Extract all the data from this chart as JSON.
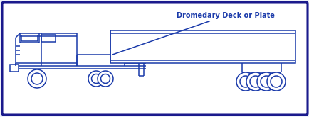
{
  "bg_color": "#eef2fa",
  "border_color": "#1a1a8c",
  "truck_color": "#1a3aaa",
  "line_width": 1.1,
  "annotation_text": "Dromedary Deck or Plate",
  "annotation_fontsize": 7.0,
  "annotation_color": "#1a3aaa",
  "figsize": [
    4.35,
    1.65
  ],
  "dpi": 100
}
